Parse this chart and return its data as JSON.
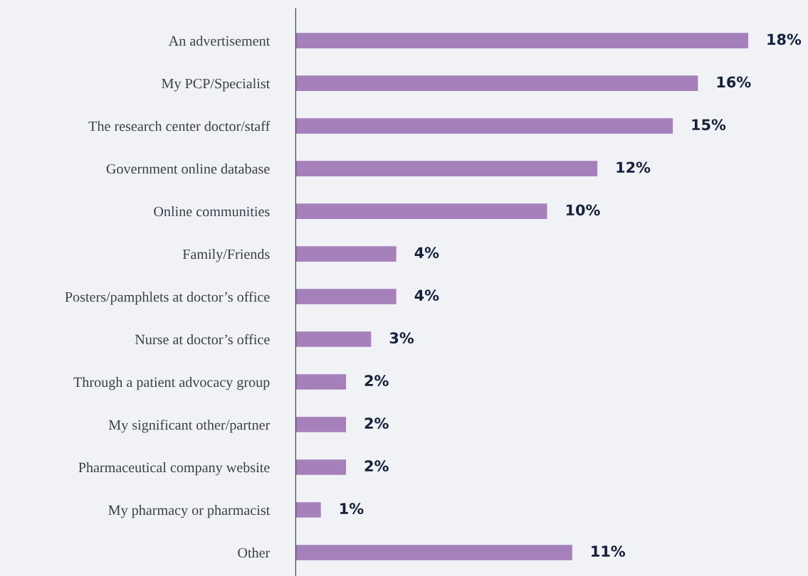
{
  "chart_data": {
    "type": "bar",
    "orientation": "horizontal",
    "categories": [
      "An advertisement",
      "My PCP/Specialist",
      "The research center doctor/staff",
      "Government online database",
      "Online communities",
      "Family/Friends",
      "Posters/pamphlets at doctor’s office",
      "Nurse at doctor’s office",
      "Through a patient advocacy group",
      "My significant other/partner",
      "Pharmaceutical company website",
      "My pharmacy or pharmacist",
      "Other"
    ],
    "values": [
      18,
      16,
      15,
      12,
      10,
      4,
      4,
      3,
      2,
      2,
      2,
      1,
      11
    ],
    "value_labels": [
      "18%",
      "16%",
      "15%",
      "12%",
      "10%",
      "4%",
      "4%",
      "3%",
      "2%",
      "2%",
      "2%",
      "1%",
      "11%"
    ],
    "color": "#a680bb",
    "grid": false,
    "legend": false
  }
}
